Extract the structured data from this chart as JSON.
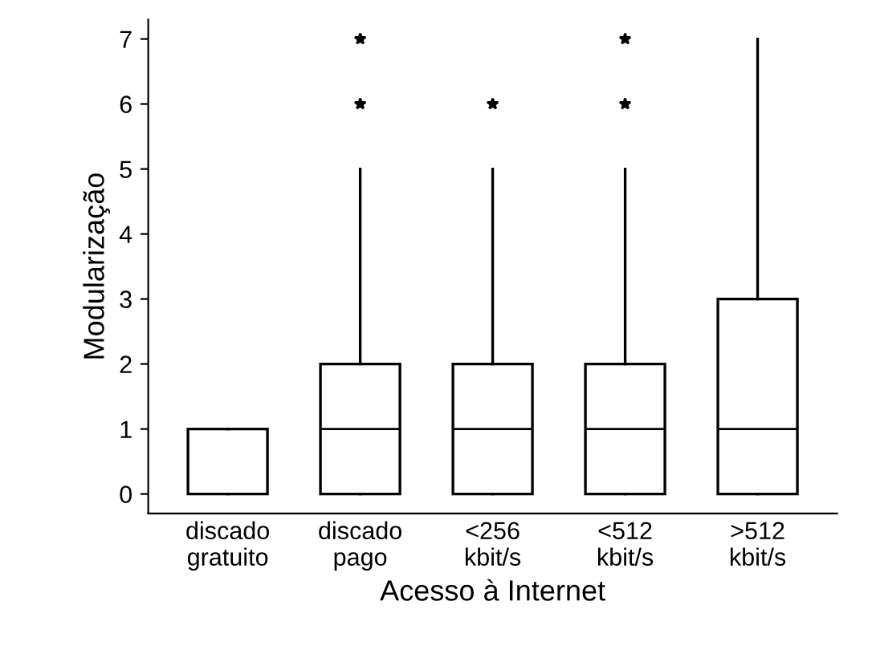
{
  "chart_data": {
    "type": "box",
    "xlabel": "Acesso à Internet",
    "ylabel": "Modularização",
    "categories": [
      "discado\ngratuito",
      "discado\npago",
      "<256\nkbit/s",
      "<512\nkbit/s",
      ">512\nkbit/s"
    ],
    "boxes": [
      {
        "low": 0,
        "q1": 0,
        "median": 0,
        "q3": 1,
        "high": 1
      },
      {
        "low": 0,
        "q1": 0,
        "median": 1,
        "q3": 2,
        "high": 5,
        "outliers": [
          6,
          7
        ]
      },
      {
        "low": 0,
        "q1": 0,
        "median": 1,
        "q3": 2,
        "high": 5,
        "outliers": [
          6
        ]
      },
      {
        "low": 0,
        "q1": 0,
        "median": 1,
        "q3": 2,
        "high": 5,
        "outliers": [
          6,
          7
        ]
      },
      {
        "low": 0,
        "q1": 0,
        "median": 1,
        "q3": 3,
        "high": 7
      }
    ],
    "ylim": [
      -0.3,
      7.3
    ],
    "yticks": [
      0,
      1,
      2,
      3,
      4,
      5,
      6,
      7
    ],
    "grid": false,
    "marker": "star"
  }
}
